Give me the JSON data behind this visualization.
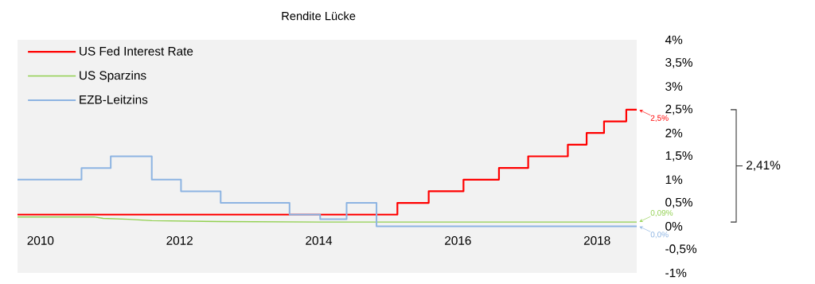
{
  "chart_data": {
    "type": "step",
    "title": "Rendite Lücke",
    "series": [
      {
        "name": "US Fed Interest Rate",
        "color": "#ff0000",
        "x": [
          2009.67,
          2015.13,
          2015.58,
          2016.08,
          2016.59,
          2017.01,
          2017.58,
          2017.85,
          2018.1,
          2018.42,
          2018.57
        ],
        "values": [
          0.25,
          0.5,
          0.75,
          1.0,
          1.25,
          1.5,
          1.75,
          2.0,
          2.25,
          2.5,
          2.5
        ]
      },
      {
        "name": "US Sparzins",
        "color": "#92d050",
        "type": "line",
        "x": [
          2009.67,
          2010.77,
          2010.9,
          2011.26,
          2011.6,
          2012.59,
          2014.0,
          2018.57
        ],
        "values": [
          0.2,
          0.2,
          0.17,
          0.15,
          0.12,
          0.1,
          0.09,
          0.09
        ]
      },
      {
        "name": "EZB-Leitzins",
        "color": "#8db4e2",
        "x": [
          2009.67,
          2010.59,
          2011.01,
          2011.6,
          2012.02,
          2012.59,
          2013.58,
          2014.02,
          2014.4,
          2014.83,
          2018.57
        ],
        "values": [
          1.0,
          1.25,
          1.5,
          1.0,
          0.75,
          0.5,
          0.25,
          0.15,
          0.5,
          0.0,
          0.0
        ]
      }
    ],
    "xlim": [
      2009.67,
      2018.57
    ],
    "xticks": [
      2010,
      2012,
      2014,
      2016,
      2018
    ],
    "ylim": [
      -1,
      4
    ],
    "yticks": [
      {
        "value": -1,
        "label": "-1%"
      },
      {
        "value": -0.5,
        "label": "-0,5%"
      },
      {
        "value": 0,
        "label": "0%"
      },
      {
        "value": 0.5,
        "label": "0,5%"
      },
      {
        "value": 1,
        "label": "1%"
      },
      {
        "value": 1.5,
        "label": "1,5%"
      },
      {
        "value": 2,
        "label": "2%"
      },
      {
        "value": 2.5,
        "label": "2,5%"
      },
      {
        "value": 3,
        "label": "3%"
      },
      {
        "value": 3.5,
        "label": "3,5%"
      },
      {
        "value": 4,
        "label": "4%"
      }
    ],
    "legend": "top left",
    "annotations": [
      "2,5%",
      "0,09%",
      "0,0%",
      "2,41%"
    ]
  }
}
